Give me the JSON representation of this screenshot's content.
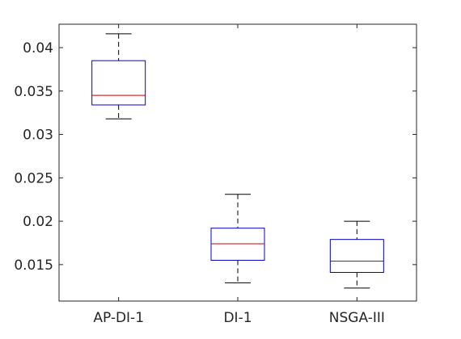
{
  "chart_data": {
    "type": "box",
    "categories": [
      "AP-DI-1",
      "DI-1",
      "NSGA-III"
    ],
    "boxes": [
      {
        "category": "AP-DI-1",
        "min": 0.0318,
        "q1": 0.0334,
        "median": 0.0345,
        "q3": 0.0385,
        "max": 0.0416
      },
      {
        "category": "DI-1",
        "min": 0.0129,
        "q1": 0.0155,
        "median": 0.0174,
        "q3": 0.0192,
        "max": 0.0231
      },
      {
        "category": "NSGA-III",
        "min": 0.0123,
        "q1": 0.0141,
        "median": 0.0154,
        "q3": 0.0179,
        "max": 0.02
      }
    ],
    "yticks": [
      "0.015",
      "0.02",
      "0.025",
      "0.03",
      "0.035",
      "0.04"
    ],
    "ylim": [
      0.0108,
      0.0427
    ],
    "grid": false,
    "colors": {
      "box": "#0000cc",
      "median": "#cc0000",
      "whisker": "#000000",
      "axis": "#262626"
    }
  }
}
